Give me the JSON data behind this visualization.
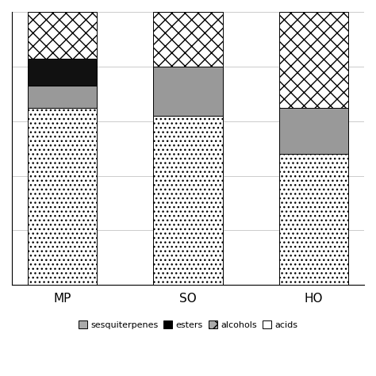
{
  "categories": [
    "MP",
    "SO",
    "HO"
  ],
  "sesquiterpenes": [
    65,
    62,
    48
  ],
  "esters": [
    10,
    0,
    0
  ],
  "alcohols": [
    8,
    18,
    17
  ],
  "acids": [
    17,
    20,
    35
  ],
  "ylim": [
    0,
    100
  ],
  "yticks": [
    0,
    20,
    40,
    60,
    80,
    100
  ],
  "bar_width": 0.55,
  "figsize": [
    4.74,
    4.74
  ],
  "dpi": 100
}
